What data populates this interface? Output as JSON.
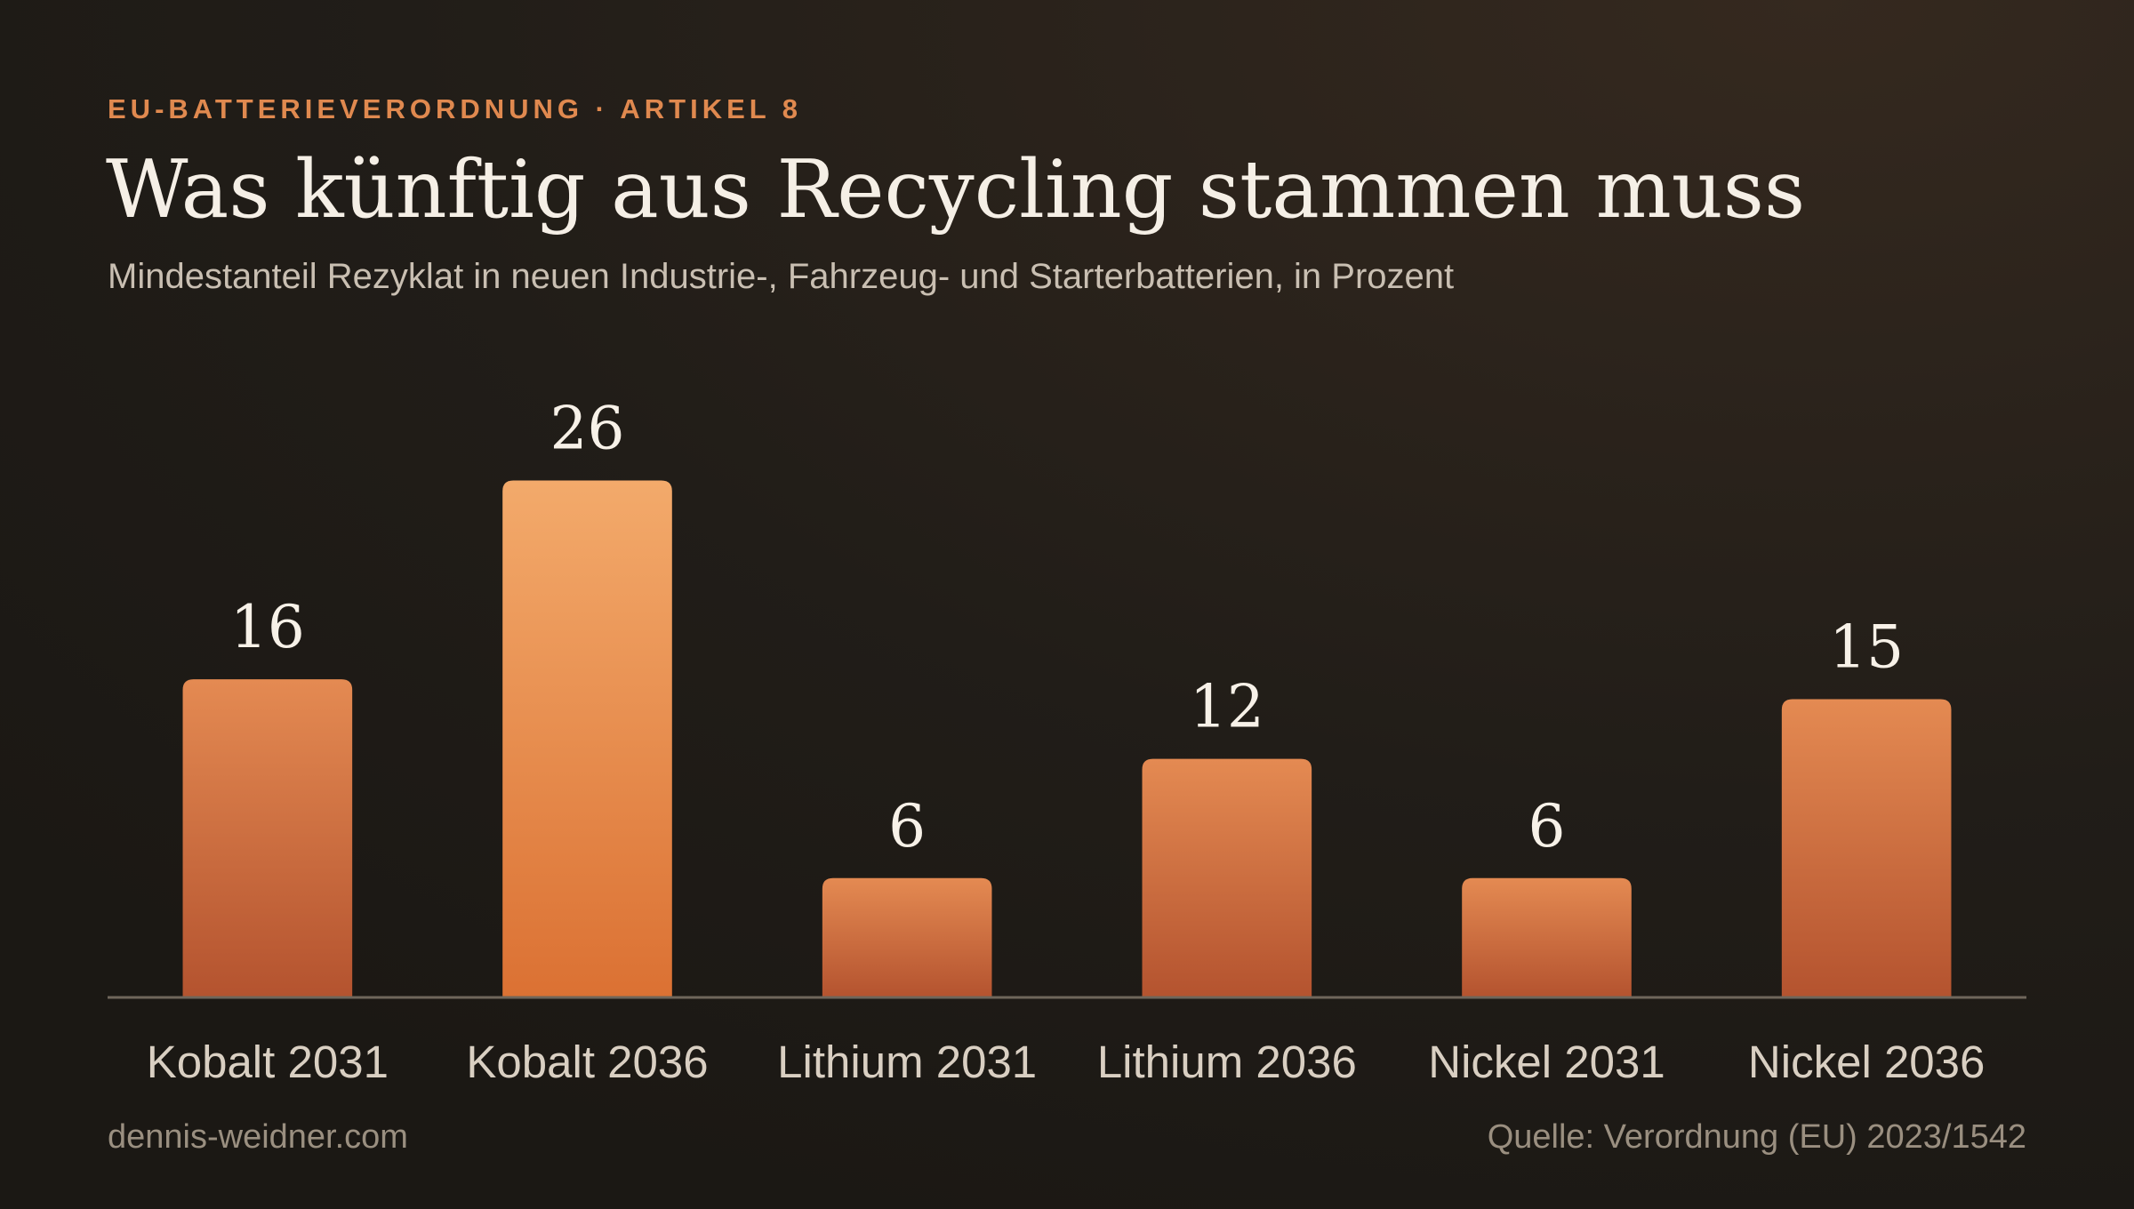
{
  "eyebrow": "EU-BATTERIEVERORDNUNG · ARTIKEL 8",
  "footer": {
    "site": "dennis-weidner.com",
    "source": "Quelle: Verordnung (EU) 2023/1542"
  },
  "chart_data": {
    "type": "bar",
    "title": "Was künftig aus Recycling stammen muss",
    "subtitle": "Mindestanteil Rezyklat in neuen Industrie-, Fahrzeug- und Starterbatterien, in Prozent",
    "categories": [
      "Kobalt 2031",
      "Kobalt 2036",
      "Lithium 2031",
      "Lithium 2036",
      "Nickel 2031",
      "Nickel 2036"
    ],
    "values": [
      16,
      26,
      6,
      12,
      6,
      15
    ],
    "color": "#d9773f",
    "ylim": [
      0,
      30
    ]
  }
}
